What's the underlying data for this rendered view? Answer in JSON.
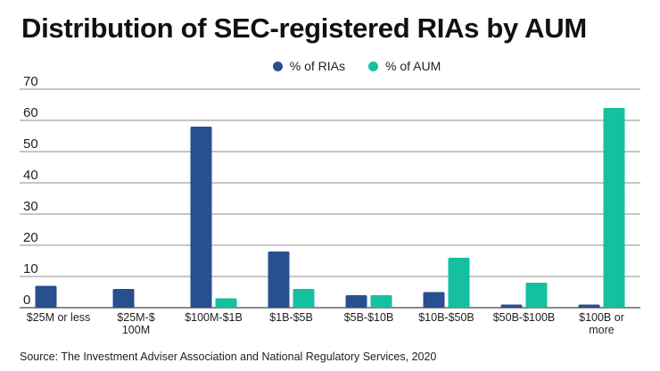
{
  "title": "Distribution of SEC-registered RIAs by AUM",
  "source": "Source: The Investment Adviser Association and National Regulatory Services, 2020",
  "colors": {
    "riAs": "#284f8f",
    "aum": "#14c0a0",
    "grid": "#555555",
    "text": "#222222"
  },
  "chart_data": {
    "type": "bar",
    "title": "Distribution of SEC-registered RIAs by AUM",
    "categories": [
      [
        "$25M or less"
      ],
      [
        "$25M-$",
        "100M"
      ],
      [
        "$100M-$1B"
      ],
      [
        "$1B-$5B"
      ],
      [
        "$5B-$10B"
      ],
      [
        "$10B-$50B"
      ],
      [
        "$50B-$100B"
      ],
      [
        "$100B or",
        "more"
      ]
    ],
    "series": [
      {
        "name": "% of RIAs",
        "color": "#284f8f",
        "values": [
          7,
          6,
          58,
          18,
          4,
          5,
          1,
          1
        ]
      },
      {
        "name": "% of AUM",
        "color": "#14c0a0",
        "values": [
          0,
          0,
          3,
          6,
          4,
          16,
          8,
          64
        ]
      }
    ],
    "yticks": [
      0,
      10,
      20,
      30,
      40,
      50,
      60,
      70
    ],
    "ylim": [
      0,
      70
    ],
    "grid": true,
    "legend_position": "top-center"
  }
}
